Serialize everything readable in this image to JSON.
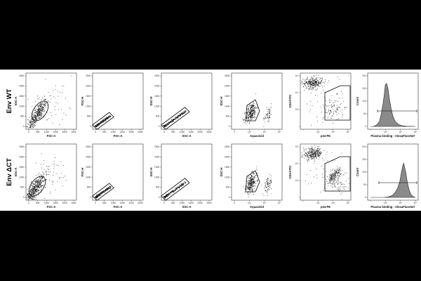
{
  "figure": {
    "rows": [
      {
        "label": "Env WT"
      },
      {
        "label": "Env ΔCT"
      }
    ],
    "panels": [
      {
        "xlabel": "FSC-A",
        "ylabel": "SSC-A",
        "xticks": [
          "0",
          "50K",
          "100K",
          "150K",
          "200K",
          "250K"
        ],
        "yticks": [
          "0",
          "50K",
          "100K",
          "150K",
          "200K",
          "250K"
        ]
      },
      {
        "xlabel": "FSC-A",
        "ylabel": "FSC-H",
        "xticks": [
          "0",
          "50K",
          "100K",
          "150K",
          "200K",
          "250K"
        ],
        "yticks": [
          "0",
          "50K",
          "100K",
          "150K",
          "200K",
          "250K"
        ]
      },
      {
        "xlabel": "SSC-A",
        "ylabel": "SSC-H",
        "xticks": [
          "0",
          "50K",
          "100K",
          "150K",
          "200K",
          "250K"
        ],
        "yticks": [
          "0",
          "50K",
          "100K",
          "150K",
          "200K",
          "250K"
        ]
      },
      {
        "xlabel": "Aquavivid",
        "ylabel": "SSC-H",
        "xticks": [
          "0",
          "10³",
          "10⁴",
          "10⁵"
        ],
        "yticks": [
          "0",
          "50K",
          "100K",
          "150K",
          "200K",
          "250K"
        ]
      },
      {
        "xlabel": "p24-PE",
        "ylabel": "CD4-FITC",
        "xticks": [
          "",
          "10³",
          "10⁴",
          "10⁵"
        ],
        "yticks": [
          "",
          "10³",
          "10⁴",
          "10⁵"
        ]
      },
      {
        "xlabel": "Plasma binding - AlexaFluor647",
        "ylabel": "Count",
        "xticks": [
          "",
          "10³",
          "10⁴",
          "10⁵"
        ],
        "yticks": [
          "0",
          "50",
          "100",
          "150",
          "200"
        ]
      }
    ]
  },
  "chart_data": [
    {
      "type": "scatter",
      "row": "Env WT",
      "xlabel": "FSC-A",
      "ylabel": "SSC-A",
      "xlim": [
        0,
        250000
      ],
      "ylim": [
        0,
        250000
      ],
      "main_population_center": [
        70000,
        70000
      ]
    },
    {
      "type": "scatter",
      "row": "Env WT",
      "xlabel": "FSC-A",
      "ylabel": "FSC-H",
      "xlim": [
        0,
        250000
      ],
      "ylim": [
        0,
        250000
      ]
    },
    {
      "type": "scatter",
      "row": "Env WT",
      "xlabel": "SSC-A",
      "ylabel": "SSC-H",
      "xlim": [
        0,
        250000
      ],
      "ylim": [
        0,
        250000
      ]
    },
    {
      "type": "scatter",
      "row": "Env WT",
      "xlabel": "Aquavivid",
      "ylabel": "SSC-H",
      "ylim": [
        0,
        250000
      ]
    },
    {
      "type": "scatter",
      "row": "Env WT",
      "xlabel": "p24-PE",
      "ylabel": "CD4-FITC"
    },
    {
      "type": "area",
      "row": "Env WT",
      "xlabel": "Plasma binding - AlexaFluor647",
      "ylabel": "Count",
      "ylim": [
        0,
        200
      ],
      "x": [
        0.0,
        0.05,
        0.1,
        0.15,
        0.2,
        0.24,
        0.28,
        0.31,
        0.33,
        0.36,
        0.39,
        0.42,
        0.46,
        0.5,
        0.55,
        0.62,
        0.7,
        0.8,
        1.0
      ],
      "y": [
        0,
        0,
        2,
        8,
        20,
        50,
        90,
        130,
        165,
        170,
        150,
        110,
        70,
        40,
        20,
        8,
        3,
        1,
        0
      ]
    },
    {
      "type": "scatter",
      "row": "Env ΔCT",
      "xlabel": "FSC-A",
      "ylabel": "SSC-A",
      "xlim": [
        0,
        250000
      ],
      "ylim": [
        0,
        250000
      ],
      "main_population_center": [
        50000,
        50000
      ]
    },
    {
      "type": "scatter",
      "row": "Env ΔCT",
      "xlabel": "FSC-A",
      "ylabel": "FSC-H",
      "xlim": [
        0,
        250000
      ],
      "ylim": [
        0,
        250000
      ]
    },
    {
      "type": "scatter",
      "row": "Env ΔCT",
      "xlabel": "SSC-A",
      "ylabel": "SSC-H",
      "xlim": [
        0,
        250000
      ],
      "ylim": [
        0,
        250000
      ]
    },
    {
      "type": "scatter",
      "row": "Env ΔCT",
      "xlabel": "Aquavivid",
      "ylabel": "SSC-H",
      "ylim": [
        0,
        250000
      ]
    },
    {
      "type": "scatter",
      "row": "Env ΔCT",
      "xlabel": "p24-PE",
      "ylabel": "CD4-FITC"
    },
    {
      "type": "area",
      "row": "Env ΔCT",
      "xlabel": "Plasma binding - AlexaFluor647",
      "ylabel": "Count",
      "ylim": [
        0,
        200
      ],
      "x": [
        0.0,
        0.3,
        0.4,
        0.45,
        0.5,
        0.55,
        0.6,
        0.65,
        0.68,
        0.7,
        0.72,
        0.74,
        0.76,
        0.79,
        0.82,
        0.86,
        0.9,
        0.95,
        1.0
      ],
      "y": [
        0,
        0,
        2,
        5,
        10,
        20,
        35,
        60,
        90,
        110,
        125,
        135,
        120,
        95,
        60,
        30,
        12,
        3,
        0
      ]
    }
  ]
}
